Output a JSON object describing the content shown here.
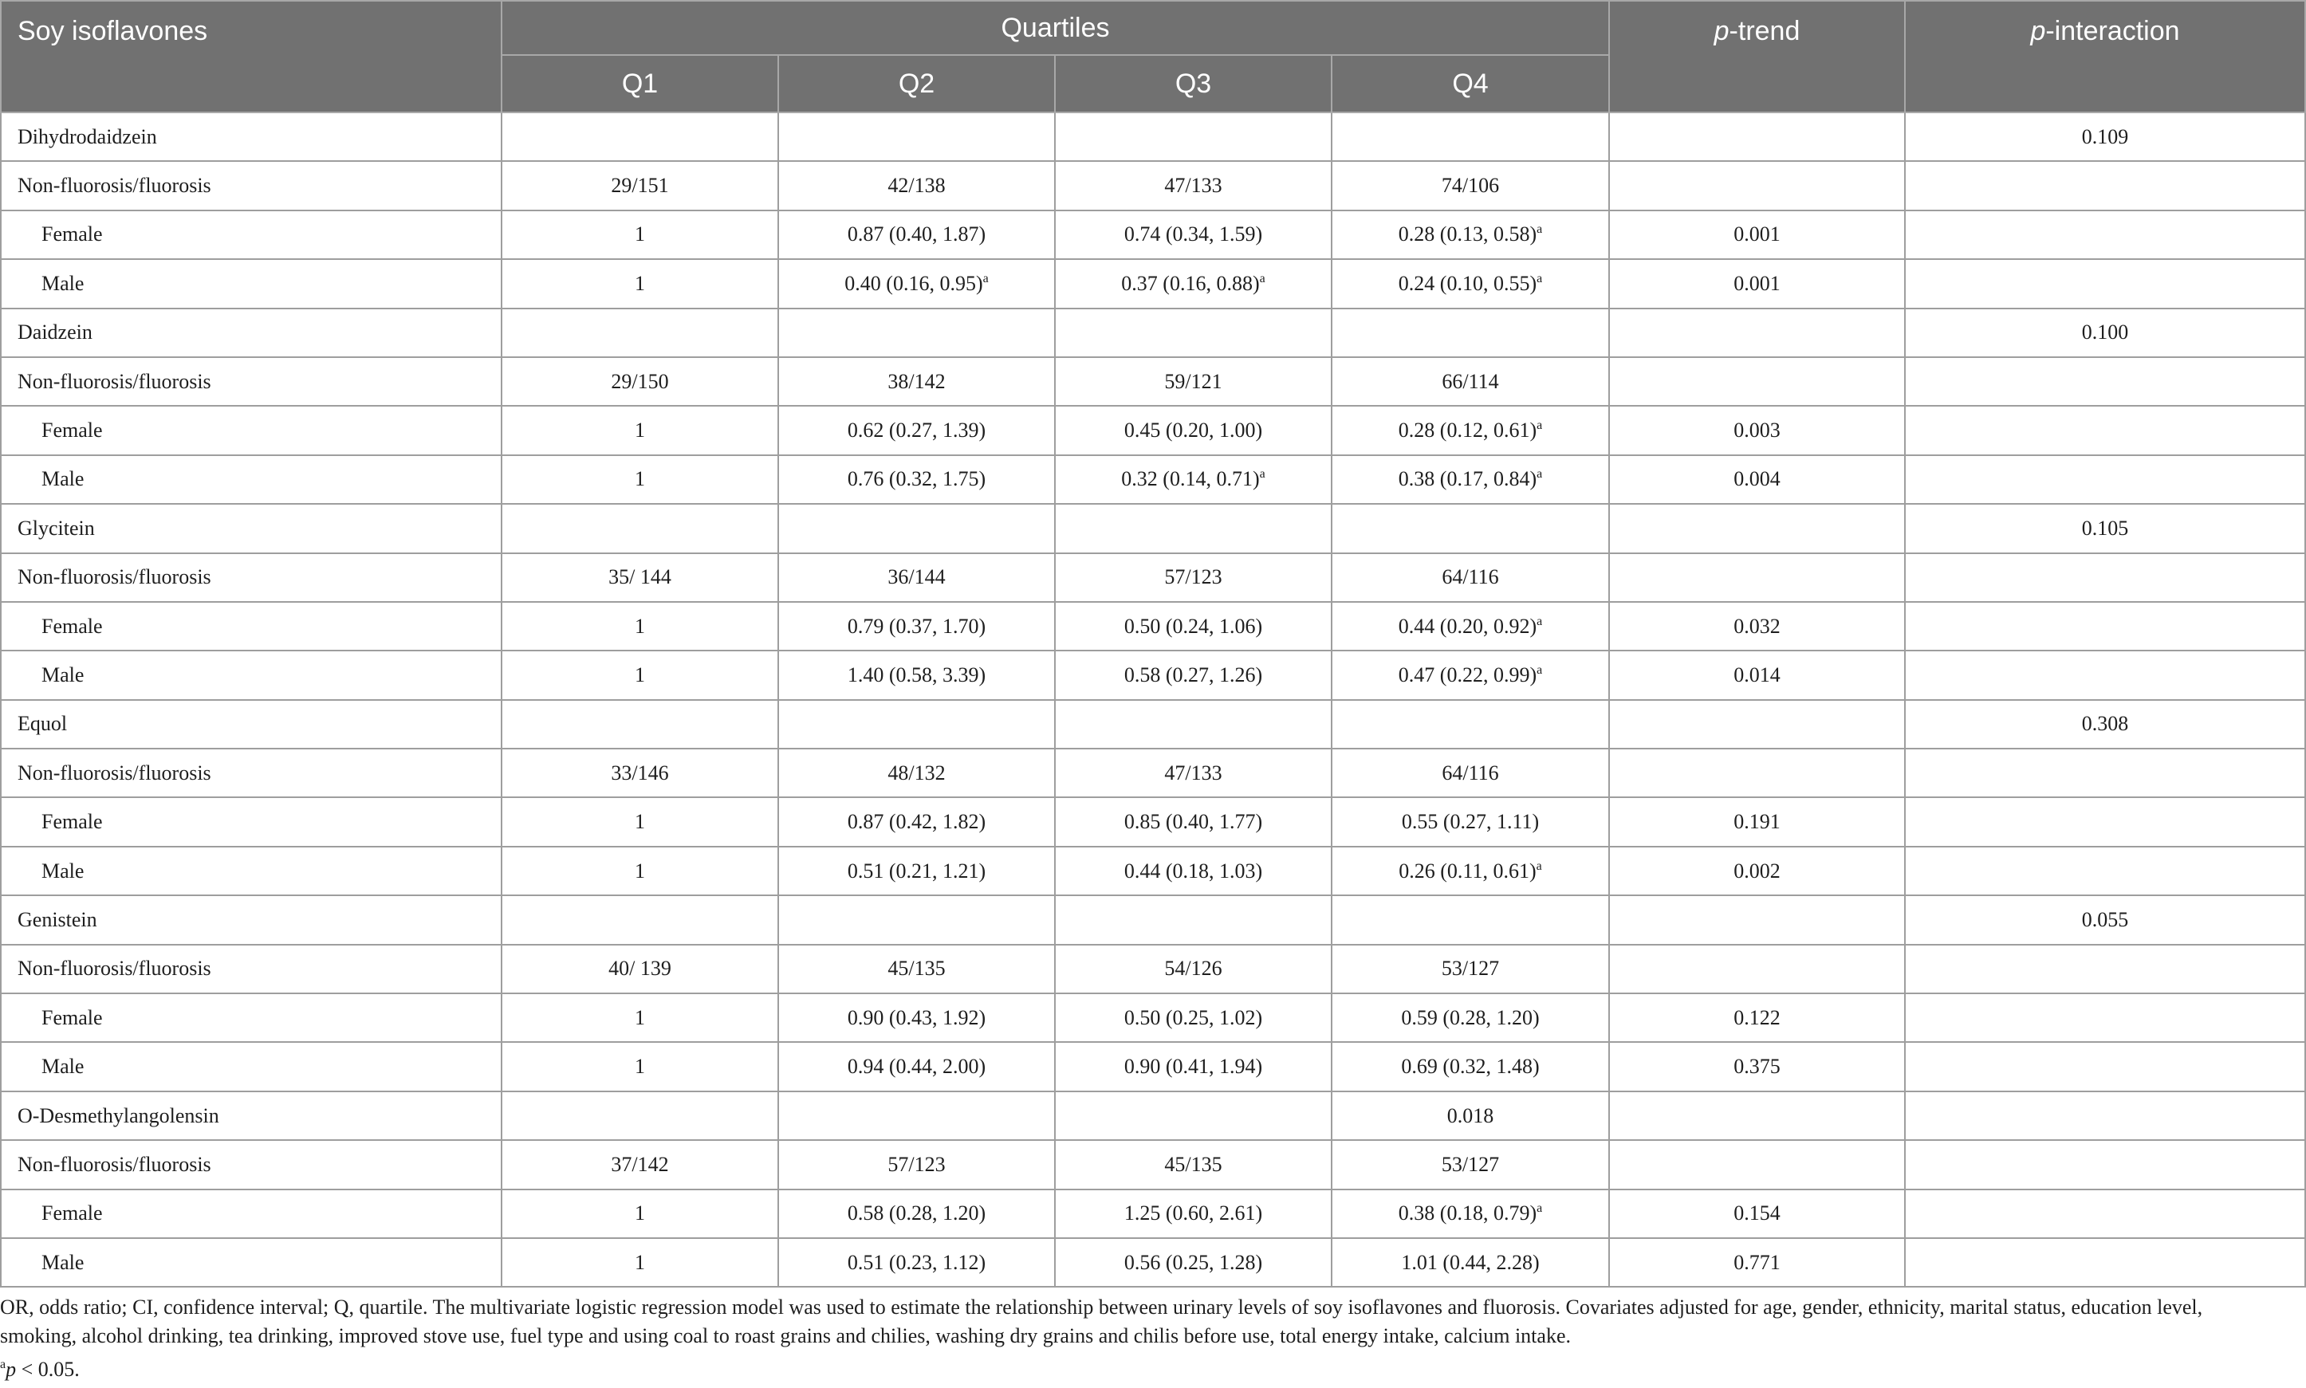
{
  "header": {
    "col1": "Soy isoflavones",
    "group": "Quartiles",
    "q": [
      "Q1",
      "Q2",
      "Q3",
      "Q4"
    ],
    "ptrend_p": "p",
    "ptrend_rest": "-trend",
    "pinter_p": "p",
    "pinter_rest": "-interaction"
  },
  "rows": [
    {
      "type": "group",
      "label": "Dihydrodaidzein",
      "q": [
        "",
        "",
        "",
        ""
      ],
      "ptrend": "",
      "pinter": "0.109"
    },
    {
      "type": "ratio",
      "label": "Non-fluorosis/fluorosis",
      "q": [
        "29/151",
        "42/138",
        "47/133",
        "74/106"
      ],
      "ptrend": "",
      "pinter": ""
    },
    {
      "type": "sub",
      "label": "Female",
      "q": [
        "1",
        "0.87 (0.40, 1.87)",
        "0.74 (0.34, 1.59)",
        "0.28 (0.13, 0.58)"
      ],
      "sig": [
        false,
        false,
        false,
        true
      ],
      "ptrend": "0.001",
      "pinter": ""
    },
    {
      "type": "sub",
      "label": "Male",
      "q": [
        "1",
        "0.40 (0.16, 0.95)",
        "0.37 (0.16, 0.88)",
        "0.24 (0.10, 0.55)"
      ],
      "sig": [
        false,
        true,
        true,
        true
      ],
      "ptrend": "0.001",
      "pinter": ""
    },
    {
      "type": "group",
      "label": "Daidzein",
      "q": [
        "",
        "",
        "",
        ""
      ],
      "ptrend": "",
      "pinter": "0.100"
    },
    {
      "type": "ratio",
      "label": "Non-fluorosis/fluorosis",
      "q": [
        "29/150",
        "38/142",
        "59/121",
        "66/114"
      ],
      "ptrend": "",
      "pinter": ""
    },
    {
      "type": "sub",
      "label": "Female",
      "q": [
        "1",
        "0.62 (0.27, 1.39)",
        "0.45 (0.20, 1.00)",
        "0.28 (0.12, 0.61)"
      ],
      "sig": [
        false,
        false,
        false,
        true
      ],
      "ptrend": "0.003",
      "pinter": ""
    },
    {
      "type": "sub",
      "label": "Male",
      "q": [
        "1",
        "0.76 (0.32, 1.75)",
        "0.32 (0.14, 0.71)",
        "0.38 (0.17, 0.84)"
      ],
      "sig": [
        false,
        false,
        true,
        true
      ],
      "ptrend": "0.004",
      "pinter": ""
    },
    {
      "type": "group",
      "label": "Glycitein",
      "q": [
        "",
        "",
        "",
        ""
      ],
      "ptrend": "",
      "pinter": "0.105"
    },
    {
      "type": "ratio",
      "label": "Non-fluorosis/fluorosis",
      "q": [
        "35/ 144",
        "36/144",
        "57/123",
        "64/116"
      ],
      "ptrend": "",
      "pinter": ""
    },
    {
      "type": "sub",
      "label": "Female",
      "q": [
        "1",
        "0.79 (0.37, 1.70)",
        "0.50 (0.24, 1.06)",
        "0.44 (0.20, 0.92)"
      ],
      "sig": [
        false,
        false,
        false,
        true
      ],
      "ptrend": "0.032",
      "pinter": ""
    },
    {
      "type": "sub",
      "label": "Male",
      "q": [
        "1",
        "1.40 (0.58, 3.39)",
        "0.58 (0.27, 1.26)",
        "0.47 (0.22, 0.99)"
      ],
      "sig": [
        false,
        false,
        false,
        true
      ],
      "ptrend": "0.014",
      "pinter": ""
    },
    {
      "type": "group",
      "label": "Equol",
      "q": [
        "",
        "",
        "",
        ""
      ],
      "ptrend": "",
      "pinter": "0.308"
    },
    {
      "type": "ratio",
      "label": "Non-fluorosis/fluorosis",
      "q": [
        "33/146",
        "48/132",
        "47/133",
        "64/116"
      ],
      "ptrend": "",
      "pinter": ""
    },
    {
      "type": "sub",
      "label": "Female",
      "q": [
        "1",
        "0.87 (0.42, 1.82)",
        "0.85 (0.40, 1.77)",
        "0.55 (0.27, 1.11)"
      ],
      "sig": [
        false,
        false,
        false,
        false
      ],
      "ptrend": "0.191",
      "pinter": ""
    },
    {
      "type": "sub",
      "label": "Male",
      "q": [
        "1",
        "0.51 (0.21, 1.21)",
        "0.44 (0.18, 1.03)",
        "0.26 (0.11, 0.61)"
      ],
      "sig": [
        false,
        false,
        false,
        true
      ],
      "ptrend": "0.002",
      "pinter": ""
    },
    {
      "type": "group",
      "label": "Genistein",
      "q": [
        "",
        "",
        "",
        ""
      ],
      "ptrend": "",
      "pinter": "0.055"
    },
    {
      "type": "ratio",
      "label": "Non-fluorosis/fluorosis",
      "q": [
        "40/ 139",
        "45/135",
        "54/126",
        "53/127"
      ],
      "ptrend": "",
      "pinter": ""
    },
    {
      "type": "sub",
      "label": "Female",
      "q": [
        "1",
        "0.90 (0.43, 1.92)",
        "0.50 (0.25, 1.02)",
        "0.59 (0.28, 1.20)"
      ],
      "sig": [
        false,
        false,
        false,
        false
      ],
      "ptrend": "0.122",
      "pinter": ""
    },
    {
      "type": "sub",
      "label": "Male",
      "q": [
        "1",
        "0.94 (0.44, 2.00)",
        "0.90 (0.41, 1.94)",
        "0.69 (0.32, 1.48)"
      ],
      "sig": [
        false,
        false,
        false,
        false
      ],
      "ptrend": "0.375",
      "pinter": ""
    },
    {
      "type": "group",
      "label": "O-Desmethylangolensin",
      "q": [
        "",
        "",
        "",
        "0.018"
      ],
      "ptrend": "",
      "pinter": ""
    },
    {
      "type": "ratio",
      "label": "Non-fluorosis/fluorosis",
      "q": [
        "37/142",
        "57/123",
        "45/135",
        "53/127"
      ],
      "ptrend": "",
      "pinter": ""
    },
    {
      "type": "sub",
      "label": "Female",
      "q": [
        "1",
        "0.58 (0.28, 1.20)",
        "1.25 (0.60, 2.61)",
        "0.38 (0.18, 0.79)"
      ],
      "sig": [
        false,
        false,
        false,
        true
      ],
      "ptrend": "0.154",
      "pinter": ""
    },
    {
      "type": "sub",
      "label": "Male",
      "q": [
        "1",
        "0.51 (0.23, 1.12)",
        "0.56 (0.25, 1.28)",
        "1.01 (0.44, 2.28)"
      ],
      "sig": [
        false,
        false,
        false,
        false
      ],
      "ptrend": "0.771",
      "pinter": ""
    }
  ],
  "sig_marker": "a",
  "footnote": "OR, odds ratio; CI, confidence interval; Q, quartile. The multivariate logistic regression model was used to estimate the relationship between urinary levels of soy isoflavones and fluorosis. Covariates adjusted for age, gender, ethnicity, marital status, education level, smoking, alcohol drinking, tea drinking, improved stove use, fuel type and using coal to roast grains and chilies, washing dry grains and chilis before use, total energy intake, calcium intake.",
  "sig_note": {
    "mark": "a",
    "p": "p",
    "rest": " < 0.05."
  }
}
